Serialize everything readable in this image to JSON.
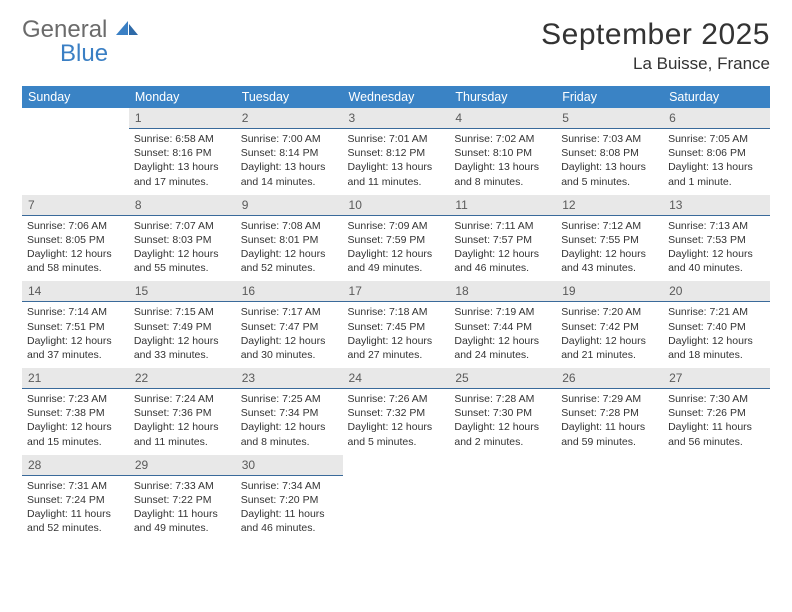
{
  "brand": {
    "part1": "General",
    "part2": "Blue"
  },
  "title": "September 2025",
  "location": "La Buisse, France",
  "colors": {
    "header_bg": "#3a83c5",
    "header_fg": "#ffffff",
    "daynum_bg": "#e8e8e8",
    "daynum_fg": "#5a5a5a",
    "rule": "#3a6a9a",
    "text": "#333333",
    "logo_gray": "#6b6b6b",
    "logo_blue": "#3a7fc4"
  },
  "weekdays": [
    "Sunday",
    "Monday",
    "Tuesday",
    "Wednesday",
    "Thursday",
    "Friday",
    "Saturday"
  ],
  "weeks": [
    {
      "nums": [
        "",
        "1",
        "2",
        "3",
        "4",
        "5",
        "6"
      ],
      "cells": [
        null,
        {
          "sunrise": "Sunrise: 6:58 AM",
          "sunset": "Sunset: 8:16 PM",
          "day1": "Daylight: 13 hours",
          "day2": "and 17 minutes."
        },
        {
          "sunrise": "Sunrise: 7:00 AM",
          "sunset": "Sunset: 8:14 PM",
          "day1": "Daylight: 13 hours",
          "day2": "and 14 minutes."
        },
        {
          "sunrise": "Sunrise: 7:01 AM",
          "sunset": "Sunset: 8:12 PM",
          "day1": "Daylight: 13 hours",
          "day2": "and 11 minutes."
        },
        {
          "sunrise": "Sunrise: 7:02 AM",
          "sunset": "Sunset: 8:10 PM",
          "day1": "Daylight: 13 hours",
          "day2": "and 8 minutes."
        },
        {
          "sunrise": "Sunrise: 7:03 AM",
          "sunset": "Sunset: 8:08 PM",
          "day1": "Daylight: 13 hours",
          "day2": "and 5 minutes."
        },
        {
          "sunrise": "Sunrise: 7:05 AM",
          "sunset": "Sunset: 8:06 PM",
          "day1": "Daylight: 13 hours",
          "day2": "and 1 minute."
        }
      ]
    },
    {
      "nums": [
        "7",
        "8",
        "9",
        "10",
        "11",
        "12",
        "13"
      ],
      "cells": [
        {
          "sunrise": "Sunrise: 7:06 AM",
          "sunset": "Sunset: 8:05 PM",
          "day1": "Daylight: 12 hours",
          "day2": "and 58 minutes."
        },
        {
          "sunrise": "Sunrise: 7:07 AM",
          "sunset": "Sunset: 8:03 PM",
          "day1": "Daylight: 12 hours",
          "day2": "and 55 minutes."
        },
        {
          "sunrise": "Sunrise: 7:08 AM",
          "sunset": "Sunset: 8:01 PM",
          "day1": "Daylight: 12 hours",
          "day2": "and 52 minutes."
        },
        {
          "sunrise": "Sunrise: 7:09 AM",
          "sunset": "Sunset: 7:59 PM",
          "day1": "Daylight: 12 hours",
          "day2": "and 49 minutes."
        },
        {
          "sunrise": "Sunrise: 7:11 AM",
          "sunset": "Sunset: 7:57 PM",
          "day1": "Daylight: 12 hours",
          "day2": "and 46 minutes."
        },
        {
          "sunrise": "Sunrise: 7:12 AM",
          "sunset": "Sunset: 7:55 PM",
          "day1": "Daylight: 12 hours",
          "day2": "and 43 minutes."
        },
        {
          "sunrise": "Sunrise: 7:13 AM",
          "sunset": "Sunset: 7:53 PM",
          "day1": "Daylight: 12 hours",
          "day2": "and 40 minutes."
        }
      ]
    },
    {
      "nums": [
        "14",
        "15",
        "16",
        "17",
        "18",
        "19",
        "20"
      ],
      "cells": [
        {
          "sunrise": "Sunrise: 7:14 AM",
          "sunset": "Sunset: 7:51 PM",
          "day1": "Daylight: 12 hours",
          "day2": "and 37 minutes."
        },
        {
          "sunrise": "Sunrise: 7:15 AM",
          "sunset": "Sunset: 7:49 PM",
          "day1": "Daylight: 12 hours",
          "day2": "and 33 minutes."
        },
        {
          "sunrise": "Sunrise: 7:17 AM",
          "sunset": "Sunset: 7:47 PM",
          "day1": "Daylight: 12 hours",
          "day2": "and 30 minutes."
        },
        {
          "sunrise": "Sunrise: 7:18 AM",
          "sunset": "Sunset: 7:45 PM",
          "day1": "Daylight: 12 hours",
          "day2": "and 27 minutes."
        },
        {
          "sunrise": "Sunrise: 7:19 AM",
          "sunset": "Sunset: 7:44 PM",
          "day1": "Daylight: 12 hours",
          "day2": "and 24 minutes."
        },
        {
          "sunrise": "Sunrise: 7:20 AM",
          "sunset": "Sunset: 7:42 PM",
          "day1": "Daylight: 12 hours",
          "day2": "and 21 minutes."
        },
        {
          "sunrise": "Sunrise: 7:21 AM",
          "sunset": "Sunset: 7:40 PM",
          "day1": "Daylight: 12 hours",
          "day2": "and 18 minutes."
        }
      ]
    },
    {
      "nums": [
        "21",
        "22",
        "23",
        "24",
        "25",
        "26",
        "27"
      ],
      "cells": [
        {
          "sunrise": "Sunrise: 7:23 AM",
          "sunset": "Sunset: 7:38 PM",
          "day1": "Daylight: 12 hours",
          "day2": "and 15 minutes."
        },
        {
          "sunrise": "Sunrise: 7:24 AM",
          "sunset": "Sunset: 7:36 PM",
          "day1": "Daylight: 12 hours",
          "day2": "and 11 minutes."
        },
        {
          "sunrise": "Sunrise: 7:25 AM",
          "sunset": "Sunset: 7:34 PM",
          "day1": "Daylight: 12 hours",
          "day2": "and 8 minutes."
        },
        {
          "sunrise": "Sunrise: 7:26 AM",
          "sunset": "Sunset: 7:32 PM",
          "day1": "Daylight: 12 hours",
          "day2": "and 5 minutes."
        },
        {
          "sunrise": "Sunrise: 7:28 AM",
          "sunset": "Sunset: 7:30 PM",
          "day1": "Daylight: 12 hours",
          "day2": "and 2 minutes."
        },
        {
          "sunrise": "Sunrise: 7:29 AM",
          "sunset": "Sunset: 7:28 PM",
          "day1": "Daylight: 11 hours",
          "day2": "and 59 minutes."
        },
        {
          "sunrise": "Sunrise: 7:30 AM",
          "sunset": "Sunset: 7:26 PM",
          "day1": "Daylight: 11 hours",
          "day2": "and 56 minutes."
        }
      ]
    },
    {
      "nums": [
        "28",
        "29",
        "30",
        "",
        "",
        "",
        ""
      ],
      "cells": [
        {
          "sunrise": "Sunrise: 7:31 AM",
          "sunset": "Sunset: 7:24 PM",
          "day1": "Daylight: 11 hours",
          "day2": "and 52 minutes."
        },
        {
          "sunrise": "Sunrise: 7:33 AM",
          "sunset": "Sunset: 7:22 PM",
          "day1": "Daylight: 11 hours",
          "day2": "and 49 minutes."
        },
        {
          "sunrise": "Sunrise: 7:34 AM",
          "sunset": "Sunset: 7:20 PM",
          "day1": "Daylight: 11 hours",
          "day2": "and 46 minutes."
        },
        null,
        null,
        null,
        null
      ]
    }
  ]
}
